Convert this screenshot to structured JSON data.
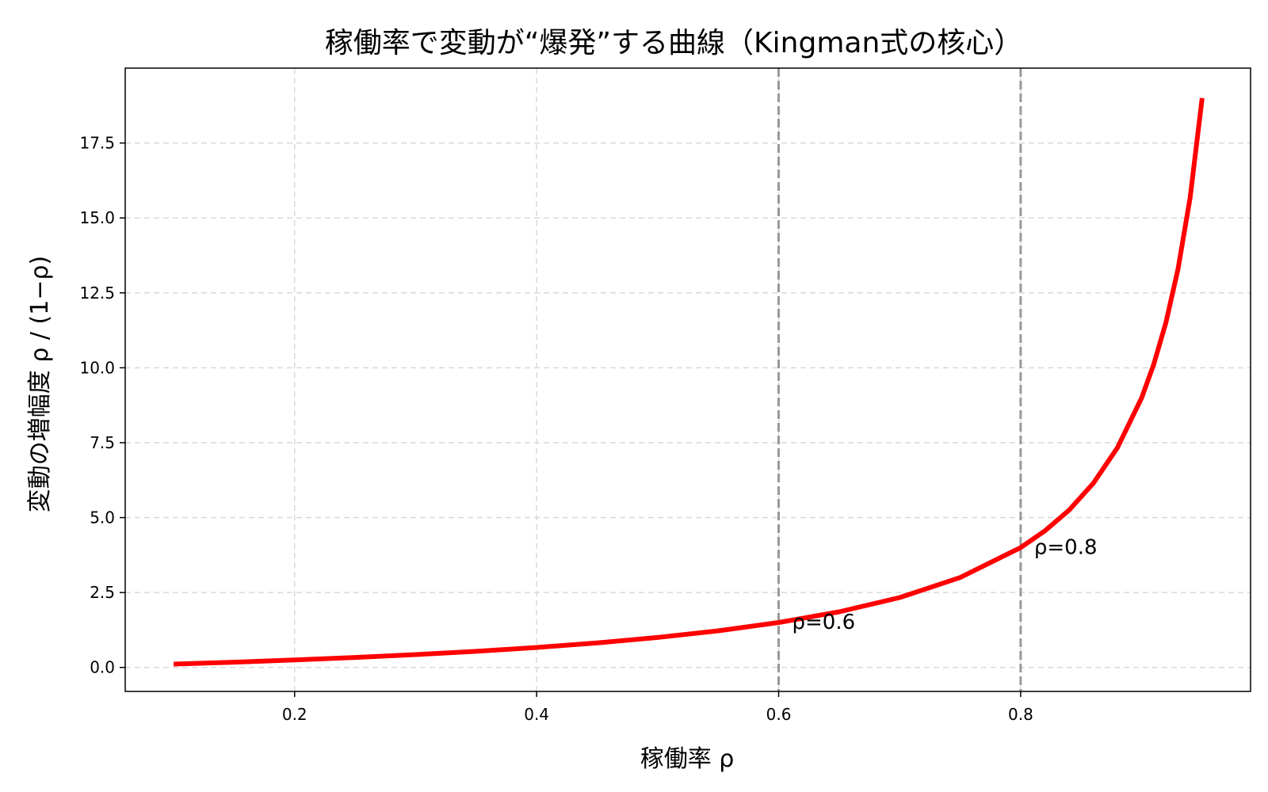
{
  "chart_data": {
    "type": "line",
    "title": "稼働率で変動が“爆発”する曲線（Kingman式の核心）",
    "xlabel": "稼働率 ρ",
    "ylabel": "変動の増幅度 ρ / (1−ρ)",
    "xlim": [
      0.06,
      0.99
    ],
    "ylim": [
      -0.8,
      20.0
    ],
    "xticks": [
      0.2,
      0.4,
      0.6,
      0.8
    ],
    "xtick_labels": [
      "0.2",
      "0.4",
      "0.6",
      "0.8"
    ],
    "yticks": [
      0.0,
      2.5,
      5.0,
      7.5,
      10.0,
      12.5,
      15.0,
      17.5
    ],
    "ytick_labels": [
      "0.0",
      "2.5",
      "5.0",
      "7.5",
      "10.0",
      "12.5",
      "15.0",
      "17.5"
    ],
    "grid": true,
    "series": [
      {
        "color": "#ff0000",
        "x": [
          0.1,
          0.15,
          0.2,
          0.25,
          0.3,
          0.35,
          0.4,
          0.45,
          0.5,
          0.55,
          0.6,
          0.65,
          0.7,
          0.75,
          0.8,
          0.82,
          0.84,
          0.86,
          0.88,
          0.9,
          0.91,
          0.92,
          0.93,
          0.94,
          0.95
        ],
        "y": [
          0.111,
          0.176,
          0.25,
          0.333,
          0.429,
          0.538,
          0.667,
          0.818,
          1.0,
          1.222,
          1.5,
          1.857,
          2.333,
          3.0,
          4.0,
          4.556,
          5.25,
          6.143,
          7.333,
          9.0,
          10.111,
          11.5,
          13.286,
          15.667,
          19.0
        ]
      }
    ],
    "reference_lines": [
      {
        "x": 0.6,
        "color": "#999999",
        "style": "dashed"
      },
      {
        "x": 0.8,
        "color": "#999999",
        "style": "dashed"
      }
    ],
    "annotations": [
      {
        "text": "ρ=0.6",
        "x": 0.6,
        "y": 1.5
      },
      {
        "text": "ρ=0.8",
        "x": 0.8,
        "y": 4.0
      }
    ]
  }
}
